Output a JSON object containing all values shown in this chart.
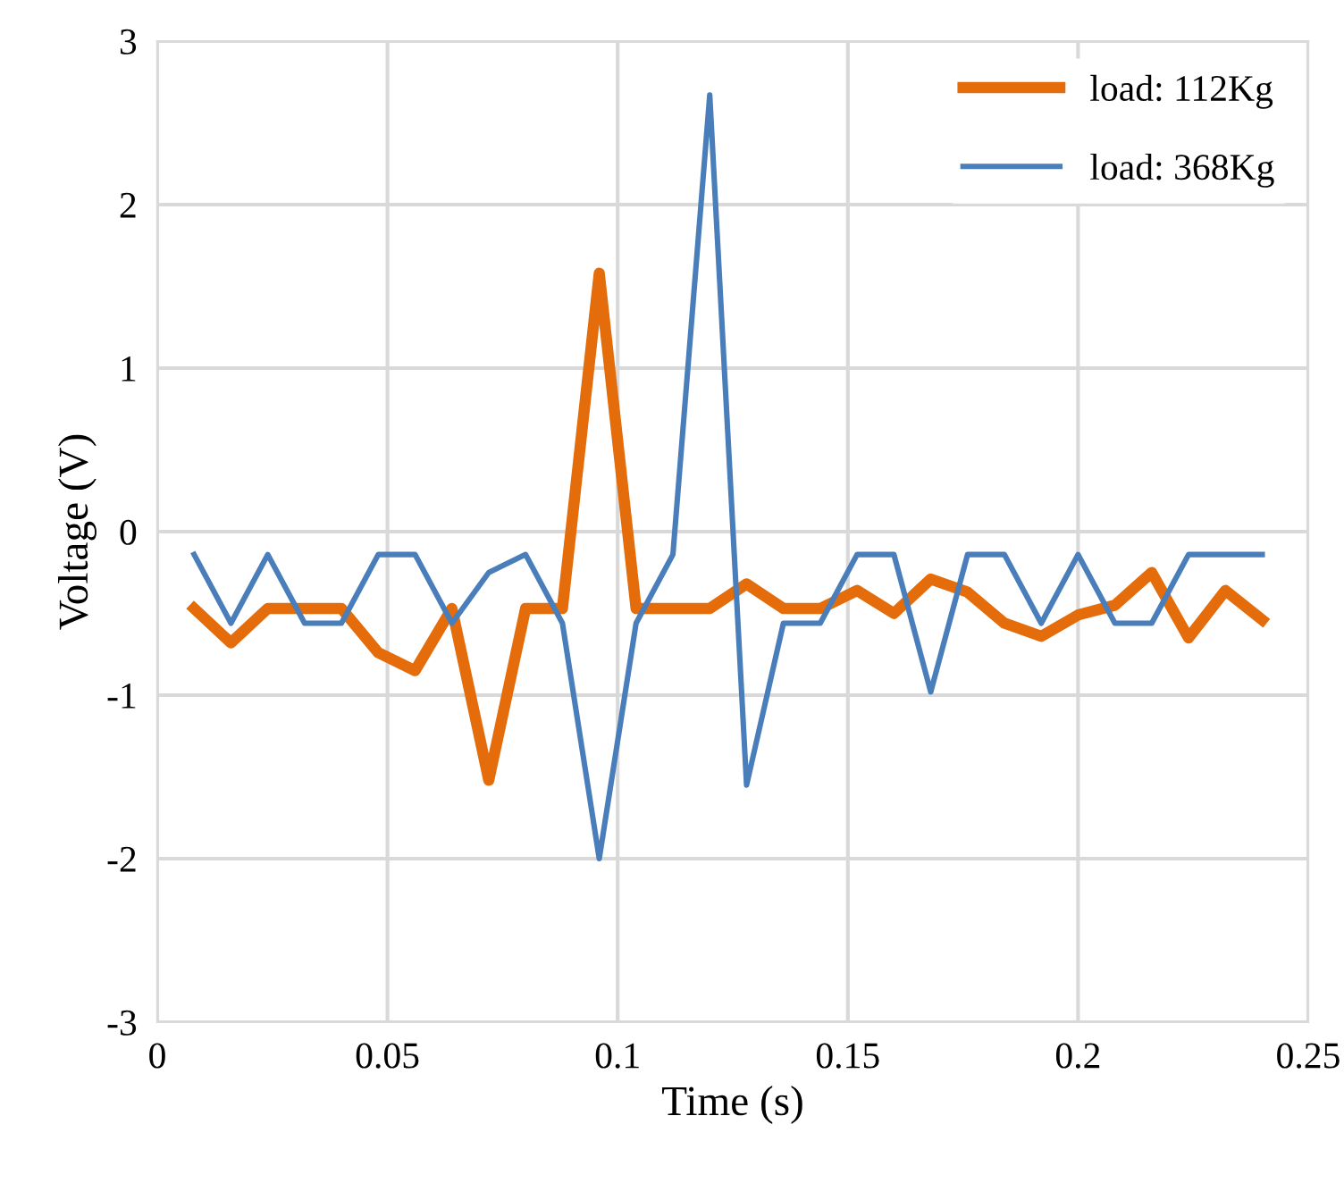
{
  "chart_data": {
    "type": "line",
    "xlabel": "Time (s)",
    "ylabel": "Voltage (V)",
    "x": [
      0.008,
      0.016,
      0.024,
      0.032,
      0.04,
      0.048,
      0.056,
      0.064,
      0.072,
      0.08,
      0.088,
      0.096,
      0.104,
      0.112,
      0.12,
      0.128,
      0.136,
      0.144,
      0.152,
      0.16,
      0.168,
      0.176,
      0.184,
      0.192,
      0.2,
      0.208,
      0.216,
      0.224,
      0.232,
      0.24
    ],
    "series": [
      {
        "name": "load: 112Kg",
        "color": "#e46c0a",
        "values": [
          -0.47,
          -0.68,
          -0.47,
          -0.47,
          -0.47,
          -0.74,
          -0.85,
          -0.47,
          -1.52,
          -0.47,
          -0.47,
          1.58,
          -0.47,
          -0.47,
          -0.47,
          -0.32,
          -0.47,
          -0.47,
          -0.36,
          -0.5,
          -0.29,
          -0.37,
          -0.56,
          -0.64,
          -0.51,
          -0.45,
          -0.25,
          -0.65,
          -0.36,
          -0.54
        ]
      },
      {
        "name": "load: 368Kg",
        "color": "#4a7ebb",
        "values": [
          -0.14,
          -0.56,
          -0.14,
          -0.56,
          -0.56,
          -0.14,
          -0.14,
          -0.56,
          -0.25,
          -0.14,
          -0.56,
          -2.0,
          -0.56,
          -0.14,
          2.67,
          -1.55,
          -0.56,
          -0.56,
          -0.14,
          -0.14,
          -0.98,
          -0.14,
          -0.14,
          -0.56,
          -0.14,
          -0.56,
          -0.56,
          -0.14,
          -0.14,
          -0.14
        ]
      }
    ],
    "xlim": [
      0,
      0.25
    ],
    "xticks": [
      0,
      0.05,
      0.1,
      0.15,
      0.2,
      0.25
    ],
    "ylim": [
      -3,
      3
    ],
    "yticks": [
      -3,
      -2,
      -1,
      0,
      1,
      2,
      3
    ],
    "grid": true,
    "legend": "top right",
    "marker": "none",
    "line_style": "solid"
  }
}
